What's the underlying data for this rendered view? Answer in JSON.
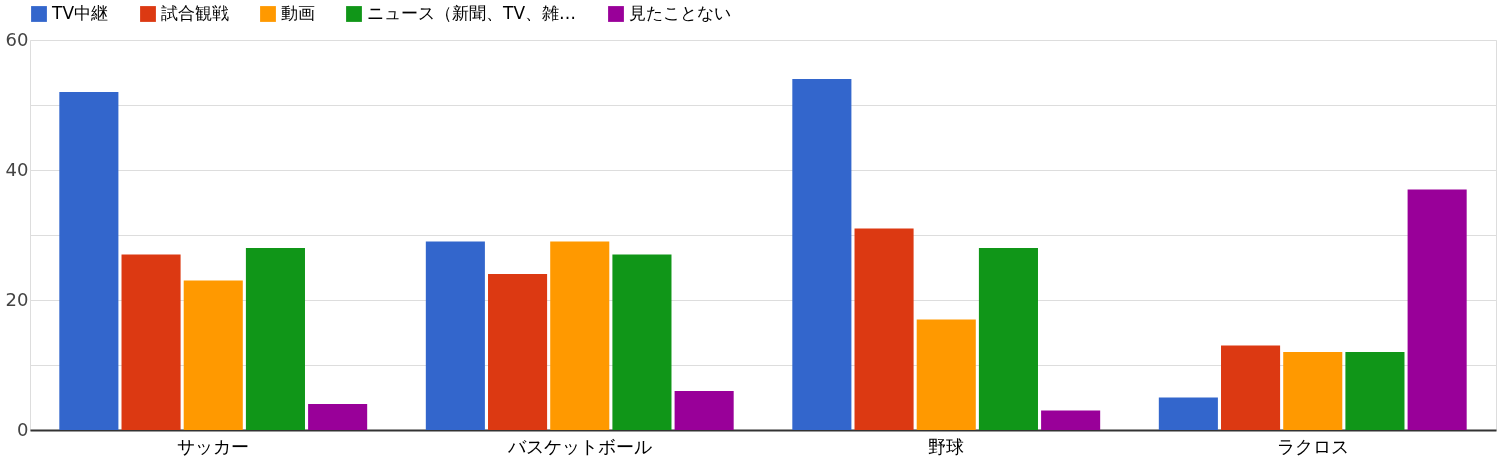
{
  "chart_data": {
    "type": "bar",
    "categories": [
      "サッカー",
      "バスケットボール",
      "野球",
      "ラクロス"
    ],
    "series": [
      {
        "name": "TV中継",
        "color": "#3366cc",
        "values": [
          52,
          29,
          54,
          5
        ]
      },
      {
        "name": "試合観戦",
        "color": "#dc3912",
        "values": [
          27,
          24,
          31,
          13
        ]
      },
      {
        "name": "動画",
        "color": "#ff9900",
        "values": [
          23,
          29,
          17,
          12
        ]
      },
      {
        "name": "ニュース（新聞、TV、雑…",
        "color": "#109618",
        "values": [
          28,
          27,
          28,
          12
        ]
      },
      {
        "name": "見たことない",
        "color": "#990099",
        "values": [
          4,
          6,
          3,
          37
        ]
      }
    ],
    "ylim": [
      0,
      60
    ],
    "yticks": [
      0,
      {
        "value": 10,
        "label": null
      },
      20,
      {
        "value": 30,
        "label": null
      },
      40,
      {
        "value": 50,
        "label": null
      },
      60
    ],
    "grid": "y",
    "legend": "top"
  }
}
